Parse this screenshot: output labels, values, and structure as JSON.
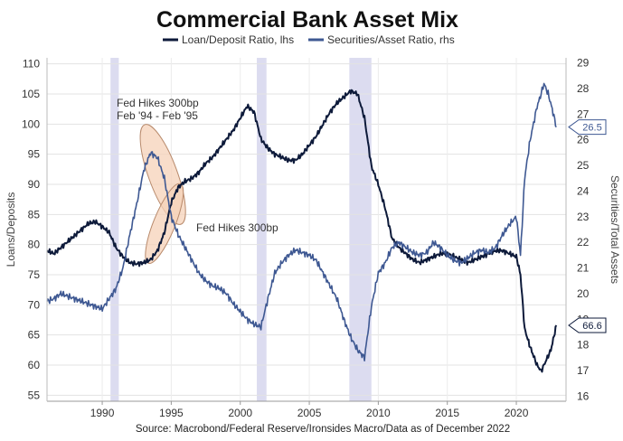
{
  "chart_data": {
    "type": "line",
    "title": "Commercial Bank Asset Mix",
    "source": "Source: Macrobond/Federal Reserve/Ironsides Macro/Data as of December 2022",
    "y_left_label": "Loans/Deposits",
    "y_right_label": "Securities/Total Assets",
    "x_range": [
      1986.0,
      2023.6
    ],
    "y_left_range": [
      54,
      111
    ],
    "y_right_range": [
      15.8,
      29.2
    ],
    "x_ticks": [
      1990,
      1995,
      2000,
      2005,
      2010,
      2015,
      2020
    ],
    "y_left_ticks": [
      55,
      60,
      65,
      70,
      75,
      80,
      85,
      90,
      95,
      100,
      105,
      110
    ],
    "y_right_ticks": [
      16,
      17,
      18,
      19,
      20,
      21,
      22,
      23,
      24,
      25,
      26,
      27,
      28,
      29
    ],
    "grid": true,
    "recession_bands": [
      [
        1990.6,
        1991.2
      ],
      [
        2001.2,
        2001.9
      ],
      [
        2007.9,
        2009.5
      ]
    ],
    "colors": {
      "loan_deposit": "#0d1a3a",
      "securities": "#3e5892",
      "recession": "#dcdcf0",
      "ellipse_fill": "#f6d2b8",
      "ellipse_stroke": "#b88a6c"
    },
    "legend": {
      "position": "top-center",
      "items": [
        "Loan/Deposit Ratio, lhs",
        "Securities/Asset Ratio, rhs"
      ]
    },
    "series": [
      {
        "name": "Loan/Deposit Ratio, lhs",
        "axis": "left",
        "color": "#0d1a3a",
        "end_label": "66.6",
        "x": [
          1986.0,
          1986.5,
          1987.0,
          1987.5,
          1988.0,
          1988.5,
          1989.0,
          1989.5,
          1990.0,
          1990.5,
          1991.0,
          1991.5,
          1992.0,
          1992.5,
          1993.0,
          1993.5,
          1994.0,
          1994.5,
          1995.0,
          1995.5,
          1996.0,
          1996.5,
          1997.0,
          1997.5,
          1998.0,
          1998.5,
          1999.0,
          1999.5,
          2000.0,
          2000.5,
          2001.0,
          2001.5,
          2002.0,
          2002.5,
          2003.0,
          2003.5,
          2004.0,
          2004.5,
          2005.0,
          2005.5,
          2006.0,
          2006.5,
          2007.0,
          2007.5,
          2008.0,
          2008.5,
          2009.0,
          2009.5,
          2010.0,
          2010.5,
          2011.0,
          2011.5,
          2012.0,
          2012.5,
          2013.0,
          2013.5,
          2014.0,
          2014.5,
          2015.0,
          2015.5,
          2016.0,
          2016.5,
          2017.0,
          2017.5,
          2018.0,
          2018.5,
          2019.0,
          2019.5,
          2020.0,
          2020.3,
          2020.6,
          2021.0,
          2021.5,
          2021.8,
          2022.0,
          2022.5,
          2022.9
        ],
        "values": [
          79,
          78.5,
          79.5,
          80.5,
          81.5,
          82.5,
          83.5,
          83.8,
          83,
          82,
          79.5,
          78,
          77,
          76.8,
          77,
          77.5,
          79,
          82,
          87,
          89.5,
          90.5,
          91,
          92,
          93.5,
          94.5,
          96,
          97.5,
          99,
          101,
          103,
          102,
          97.5,
          96,
          95,
          94.5,
          94,
          94,
          95,
          96.5,
          98,
          100,
          102,
          103.5,
          104.5,
          105.5,
          105,
          101,
          93,
          90,
          86,
          81,
          79.5,
          78.5,
          77.5,
          77,
          77.5,
          78,
          78.5,
          78.5,
          78,
          77.5,
          77,
          77.5,
          78,
          78.5,
          79,
          79,
          78.5,
          78,
          75,
          66,
          63,
          60,
          59,
          60,
          62.5,
          66.6
        ]
      },
      {
        "name": "Securities/Asset Ratio, rhs",
        "axis": "right",
        "color": "#3e5892",
        "end_label": "26.5",
        "x": [
          1986.0,
          1986.5,
          1987.0,
          1987.5,
          1988.0,
          1988.5,
          1989.0,
          1989.5,
          1990.0,
          1990.5,
          1991.0,
          1991.5,
          1992.0,
          1992.5,
          1993.0,
          1993.5,
          1994.0,
          1994.5,
          1995.0,
          1995.5,
          1996.0,
          1996.5,
          1997.0,
          1997.5,
          1998.0,
          1998.5,
          1999.0,
          1999.5,
          2000.0,
          2000.5,
          2001.0,
          2001.5,
          2002.0,
          2002.5,
          2003.0,
          2003.5,
          2004.0,
          2004.5,
          2005.0,
          2005.5,
          2006.0,
          2006.5,
          2007.0,
          2007.5,
          2008.0,
          2008.5,
          2009.0,
          2009.5,
          2010.0,
          2010.5,
          2011.0,
          2011.5,
          2012.0,
          2012.5,
          2013.0,
          2013.5,
          2014.0,
          2014.5,
          2015.0,
          2015.5,
          2016.0,
          2016.5,
          2017.0,
          2017.5,
          2018.0,
          2018.5,
          2019.0,
          2019.5,
          2020.0,
          2020.3,
          2020.6,
          2021.0,
          2021.5,
          2021.8,
          2022.0,
          2022.3,
          2022.6,
          2022.9
        ],
        "values": [
          19.7,
          19.8,
          20,
          19.9,
          19.8,
          19.7,
          19.6,
          19.5,
          19.4,
          19.8,
          20.2,
          21,
          22.3,
          23.5,
          24.8,
          25.5,
          25.3,
          24.5,
          23,
          22.3,
          21.8,
          21.3,
          20.8,
          20.5,
          20.3,
          20.2,
          20,
          19.6,
          19.3,
          19,
          18.8,
          18.7,
          19.8,
          20.8,
          21.2,
          21.5,
          21.7,
          21.6,
          21.5,
          21.3,
          20.8,
          20.3,
          19.8,
          19,
          18.3,
          17.8,
          17.5,
          19.5,
          20.8,
          21.2,
          21.8,
          22,
          21.8,
          21.6,
          21.5,
          21.6,
          22,
          21.8,
          21.5,
          21.3,
          21.2,
          21.4,
          21.6,
          21.7,
          21.6,
          21.8,
          22.3,
          22.7,
          23,
          21.5,
          24.5,
          26,
          27.3,
          27.8,
          28.2,
          27.8,
          27.2,
          26.5
        ]
      }
    ],
    "annotations": [
      {
        "text_lines": [
          "Fed Hikes 300bp",
          "Feb '94 - Feb '95"
        ],
        "x": 1994.0,
        "y_right_range": [
          23.5,
          25.8
        ]
      },
      {
        "text_lines": [
          "Fed Hikes 300bp"
        ],
        "x": 1994.5,
        "y_left_range": [
          77,
          90
        ]
      }
    ]
  }
}
